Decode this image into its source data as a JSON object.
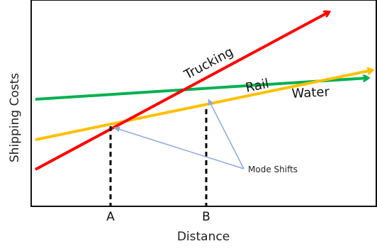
{
  "diagram": {
    "y_axis_label": "Shipping Costs",
    "x_axis_label": "Distance",
    "points": [
      {
        "label": "A"
      },
      {
        "label": "B"
      }
    ],
    "annotation": "Mode Shifts",
    "modes": [
      {
        "name": "Trucking",
        "color": "#ff0000"
      },
      {
        "name": "Rail",
        "color": "#ffc000"
      },
      {
        "name": "Water",
        "color": "#00b050"
      }
    ],
    "colors": {
      "axes": "#111111",
      "dashed": "#000000",
      "annotation_arrows": "#8eaadb"
    }
  }
}
